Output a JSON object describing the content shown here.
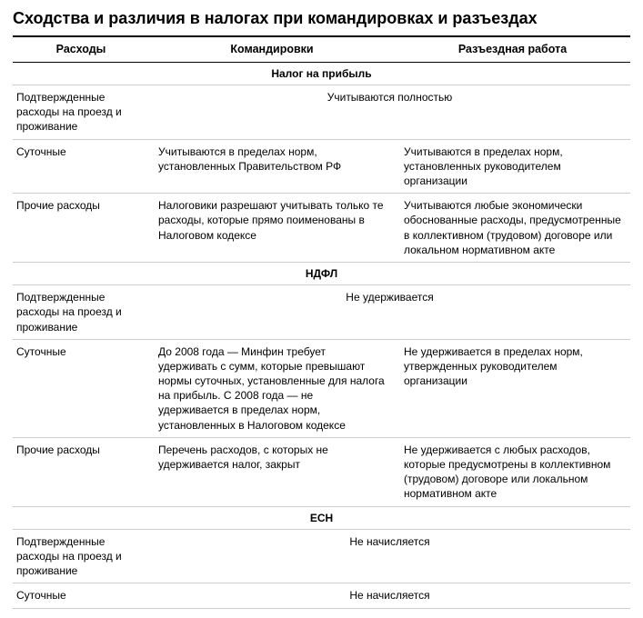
{
  "title": "Сходства и различия в налогах при командировках и разъездах",
  "columns": {
    "col1": "Расходы",
    "col2": "Командировки",
    "col3": "Разъездная работа"
  },
  "sections": [
    {
      "name": "Налог на прибыль",
      "rows": [
        {
          "label": "Подтвержденные расходы на проезд и проживание",
          "merged": true,
          "c2": "Учитываются полностью"
        },
        {
          "label": "Суточные",
          "c2": "Учитываются в пределах норм, установленных Правительством РФ",
          "c3": "Учитываются в пределах норм, установленных руководителем организации"
        },
        {
          "label": "Прочие расходы",
          "c2": "Налоговики разрешают учитывать только те расходы, которые прямо поименованы в Налоговом кодексе",
          "c3": "Учитываются любые экономически обоснованные расходы, предусмотренные в коллективном (трудовом) договоре или локальном нормативном акте"
        }
      ]
    },
    {
      "name": "НДФЛ",
      "rows": [
        {
          "label": "Подтвержденные расходы на проезд и проживание",
          "merged": true,
          "c2": "Не удерживается"
        },
        {
          "label": "Суточные",
          "c2": "До 2008 года — Минфин требует удерживать с сумм, которые превышают нормы суточных, установленные для налога на прибыль. С 2008 года — не удерживается в пределах норм, установленных в Налоговом кодексе",
          "c3": "Не удерживается в пределах норм, утвержденных руководителем организации"
        },
        {
          "label": "Прочие расходы",
          "c2": "Перечень расходов, с которых не удерживается налог, закрыт",
          "c3": "Не удерживается с любых расходов, которые предусмотрены в коллективном (трудовом) договоре или локальном нормативном акте"
        }
      ]
    },
    {
      "name": "ЕСН",
      "rows": [
        {
          "label": "Подтвержденные расходы на проезд и проживание",
          "merged": true,
          "c2": "Не начисляется"
        },
        {
          "label": "Суточные",
          "merged": true,
          "c2": "Не начисляется"
        }
      ]
    }
  ]
}
